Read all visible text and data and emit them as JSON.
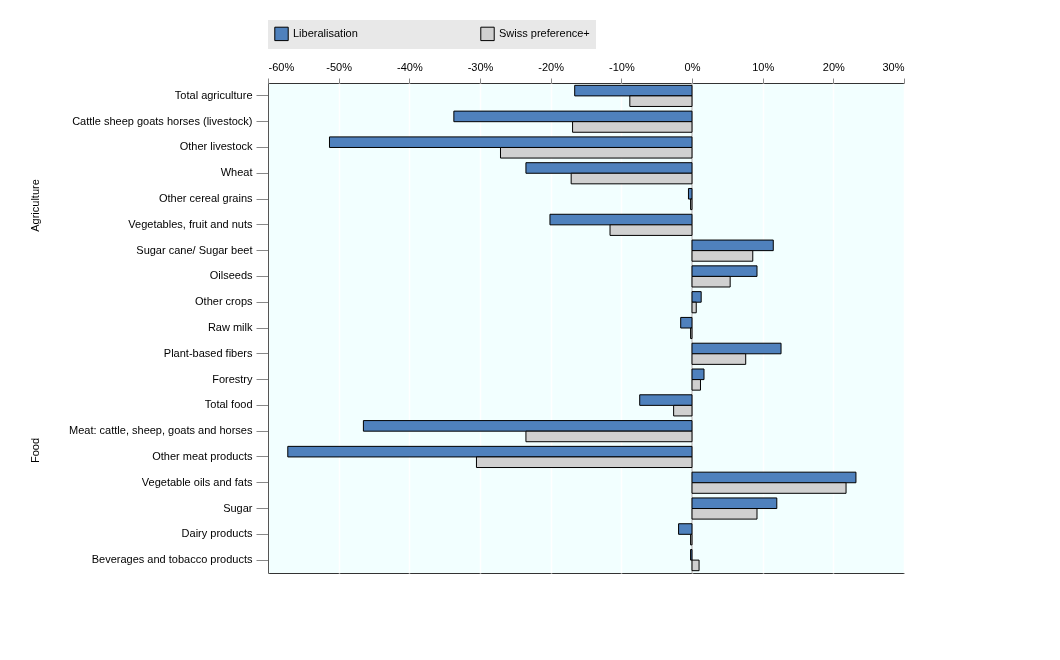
{
  "chart_data": {
    "type": "bar",
    "orientation": "horizontal",
    "categories": [
      "Total agriculture",
      "Cattle sheep goats horses (livestock)",
      "Other livestock",
      "Wheat",
      "Other cereal grains",
      "Vegetables, fruit and nuts",
      "Sugar cane/ Sugar beet",
      "Oilseeds",
      "Other crops",
      "Raw milk",
      "Plant-based fibers",
      "Forestry",
      "Total food",
      "Meat: cattle, sheep, goats and horses",
      "Other meat products",
      "Vegetable oils and fats",
      "Sugar",
      "Dairy products",
      "Beverages and tobacco products"
    ],
    "series": [
      {
        "name": "Liberalisation",
        "color": "#4f81bd",
        "values": [
          -16.6,
          -33.7,
          -51.3,
          -23.5,
          -0.5,
          -20.1,
          11.5,
          9.2,
          1.3,
          -1.6,
          12.6,
          1.7,
          -7.4,
          -46.5,
          -57.2,
          23.2,
          12.0,
          -1.9,
          -0.2
        ]
      },
      {
        "name": "Swiss preference+",
        "color": "#d0d0d0",
        "values": [
          -8.8,
          -16.9,
          -27.1,
          -17.1,
          -0.2,
          -11.6,
          8.6,
          5.4,
          0.6,
          -0.2,
          7.6,
          1.2,
          -2.6,
          -23.5,
          -30.5,
          21.8,
          9.2,
          -0.2,
          1.0
        ]
      }
    ],
    "xlim": [
      -60,
      30
    ],
    "xticks": [
      {
        "value": -60,
        "label": "-60%"
      },
      {
        "value": -50,
        "label": "-50%"
      },
      {
        "value": -40,
        "label": "-40%"
      },
      {
        "value": -30,
        "label": "-30%"
      },
      {
        "value": -20,
        "label": "-20%"
      },
      {
        "value": -10,
        "label": "-10%"
      },
      {
        "value": 0,
        "label": "0%"
      },
      {
        "value": 10,
        "label": "10%"
      },
      {
        "value": 20,
        "label": "20%"
      },
      {
        "value": 30,
        "label": "30%"
      }
    ],
    "annotations": [
      "Agriculture",
      "Food"
    ],
    "grid": "x",
    "legend": "top"
  }
}
